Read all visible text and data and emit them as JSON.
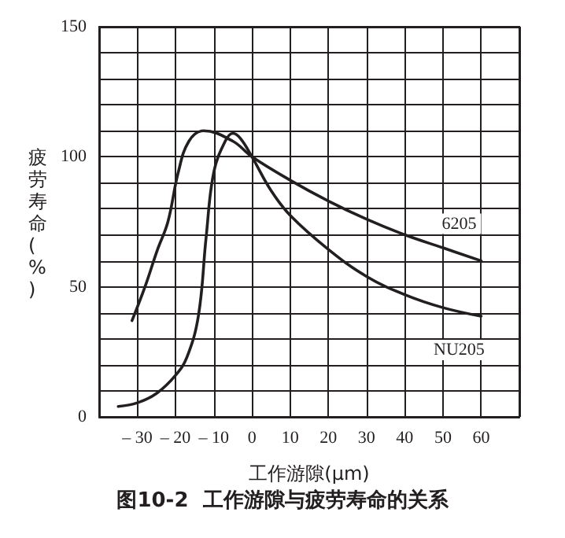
{
  "chart_data": {
    "type": "line",
    "title": "图10-2  工作游隙与疲劳寿命的关系",
    "xlabel": "工作游隙(μm)",
    "ylabel": "疲劳寿命(%)",
    "xlim": [
      -40,
      70
    ],
    "xticks": [
      {
        "value": -40,
        "label": null
      },
      {
        "value": -30,
        "label": "– 30"
      },
      {
        "value": -20,
        "label": "– 20"
      },
      {
        "value": -10,
        "label": "– 10"
      },
      0,
      10,
      20,
      30,
      40,
      50,
      60,
      {
        "value": 70,
        "label": null
      }
    ],
    "ylim": [
      0,
      150
    ],
    "yticks": [
      0,
      {
        "value": 10,
        "label": null
      },
      {
        "value": 20,
        "label": null
      },
      {
        "value": 30,
        "label": null
      },
      {
        "value": 40,
        "label": null
      },
      50,
      {
        "value": 60,
        "label": null
      },
      {
        "value": 70,
        "label": null
      },
      {
        "value": 80,
        "label": null
      },
      {
        "value": 90,
        "label": null
      },
      100,
      {
        "value": 110,
        "label": null
      },
      {
        "value": 120,
        "label": null
      },
      {
        "value": 130,
        "label": null
      },
      {
        "value": 140,
        "label": null
      },
      150
    ],
    "grid": true,
    "legend": false,
    "marker": "none",
    "line_style": "solid",
    "series": [
      {
        "name": "6205",
        "color": "#231f20",
        "x": [
          -31.4,
          -28,
          -24.8,
          -22,
          -19.3,
          -16.5,
          -12.7,
          -5,
          0,
          10,
          20,
          30,
          40,
          50,
          60
        ],
        "values": [
          37,
          50,
          64,
          75,
          94,
          106,
          110,
          106,
          100,
          91,
          83,
          76,
          70,
          65,
          60
        ]
      },
      {
        "name": "NU205",
        "color": "#231f20",
        "x": [
          -35,
          -30,
          -25,
          -20,
          -17,
          -14,
          -12,
          -10,
          -7,
          -5,
          -3,
          0,
          5,
          10,
          20,
          30,
          40,
          50,
          60
        ],
        "values": [
          4,
          5.4,
          9,
          16,
          23,
          39,
          69,
          94,
          106,
          109,
          107,
          100,
          87,
          77.5,
          64.4,
          54,
          47,
          42,
          38.7
        ]
      }
    ]
  }
}
